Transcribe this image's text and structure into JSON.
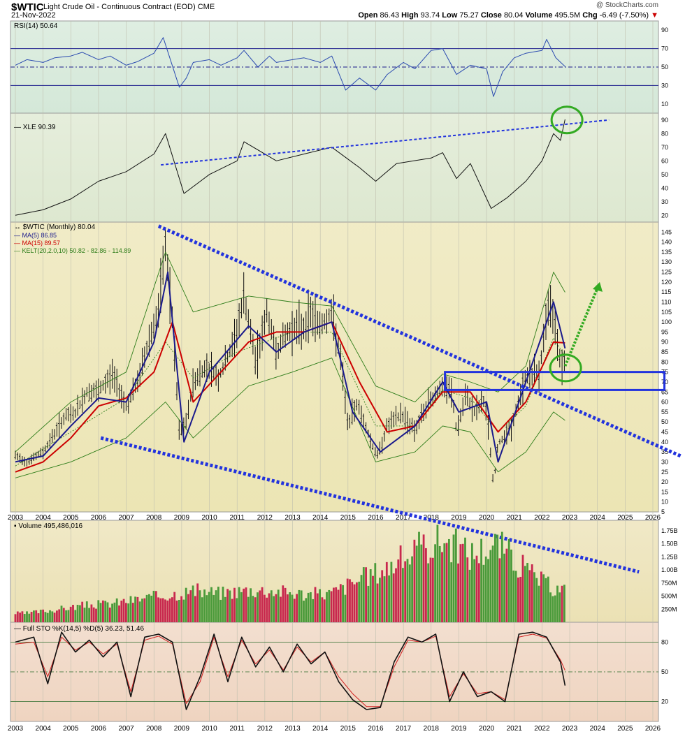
{
  "header": {
    "ticker": "$WTIC",
    "name": "Light Crude Oil - Continuous Contract (EOD)",
    "exchange": "CME",
    "date": "21-Nov-2022",
    "watermark": "@ StockCharts.com",
    "open_label": "Open",
    "open": "86.43",
    "high_label": "High",
    "high": "93.74",
    "low_label": "Low",
    "low": "75.27",
    "close_label": "Close",
    "close": "80.04",
    "volume_label": "Volume",
    "volume": "495.5M",
    "chg_label": "Chg",
    "chg": "-6.49 (-7.50%)",
    "chg_arrow": "▼"
  },
  "colors": {
    "rsi_bg": "#d4e8d8",
    "xle_bg": "#dde8d0",
    "price_bg": "#ece5b4",
    "volume_bg": "#ebe1b4",
    "sto_bg": "#efd4c0",
    "ma5": "#1a1a8c",
    "ma15": "#cc0000",
    "kelt": "#2e7d1a",
    "trend_blue": "#2233dd",
    "circle_green": "#33aa22",
    "vol_up": "#4a9a3a",
    "vol_down": "#c8284e"
  },
  "chart_data": [
    {
      "type": "line",
      "panel": "rsi",
      "legend": "RSI(14) 50.64",
      "ylim": [
        0,
        100
      ],
      "y_ticks": [
        "90",
        "70",
        "50",
        "30",
        "10"
      ],
      "reference_lines": [
        70,
        50,
        30
      ],
      "x": [
        "2003-01",
        "2003-06",
        "2004-01",
        "2004-06",
        "2005-01",
        "2005-06",
        "2006-01",
        "2006-06",
        "2007-01",
        "2007-06",
        "2008-01",
        "2008-05",
        "2008-12",
        "2009-03",
        "2009-06",
        "2010-01",
        "2010-06",
        "2011-01",
        "2011-04",
        "2011-10",
        "2012-03",
        "2012-06",
        "2013-01",
        "2013-06",
        "2014-01",
        "2014-06",
        "2014-12",
        "2015-06",
        "2016-01",
        "2016-06",
        "2017-01",
        "2017-06",
        "2018-01",
        "2018-06",
        "2018-12",
        "2019-06",
        "2020-01",
        "2020-04",
        "2020-08",
        "2021-01",
        "2021-06",
        "2022-01",
        "2022-03",
        "2022-07",
        "2022-11"
      ],
      "values": [
        52,
        58,
        55,
        60,
        62,
        66,
        58,
        62,
        52,
        56,
        65,
        82,
        28,
        38,
        55,
        58,
        52,
        60,
        68,
        50,
        62,
        55,
        58,
        60,
        55,
        62,
        25,
        38,
        25,
        42,
        55,
        48,
        68,
        70,
        42,
        52,
        48,
        18,
        45,
        60,
        65,
        68,
        80,
        60,
        50.64
      ]
    },
    {
      "type": "line",
      "panel": "xle",
      "legend": "XLE 90.39",
      "ylim": [
        15,
        95
      ],
      "y_ticks": [
        "90",
        "80",
        "70",
        "60",
        "50",
        "40",
        "30",
        "20"
      ],
      "x": [
        "2003-01",
        "2004-01",
        "2005-01",
        "2006-01",
        "2007-01",
        "2008-01",
        "2008-06",
        "2009-02",
        "2010-01",
        "2011-01",
        "2011-04",
        "2012-06",
        "2013-06",
        "2014-06",
        "2015-06",
        "2016-01",
        "2016-10",
        "2018-01",
        "2018-06",
        "2018-12",
        "2019-06",
        "2020-03",
        "2020-10",
        "2021-06",
        "2022-01",
        "2022-06",
        "2022-09",
        "2022-11"
      ],
      "values": [
        20,
        24,
        32,
        45,
        52,
        65,
        80,
        36,
        50,
        60,
        74,
        60,
        65,
        70,
        55,
        45,
        58,
        62,
        66,
        47,
        58,
        25,
        33,
        45,
        60,
        80,
        75,
        90.39
      ]
    },
    {
      "type": "candlestick",
      "panel": "price",
      "legend": [
        "$WTIC (Monthly) 80.04",
        "MA(5) 86.85",
        "MA(15) 89.57",
        "KELT(20,2.0,10) 50.82 - 82.86 - 114.89"
      ],
      "ylim": [
        5,
        150
      ],
      "y_ticks": [
        "145",
        "140",
        "135",
        "130",
        "125",
        "120",
        "115",
        "110",
        "105",
        "100",
        "95",
        "90",
        "85",
        "80",
        "75",
        "70",
        "65",
        "60",
        "55",
        "50",
        "45",
        "40",
        "35",
        "30",
        "25",
        "20",
        "15",
        "10",
        "5"
      ],
      "x_ticks": [
        "2003",
        "2004",
        "2005",
        "2006",
        "2007",
        "2008",
        "2009",
        "2010",
        "2011",
        "2012",
        "2013",
        "2014",
        "2015",
        "2016",
        "2017",
        "2018",
        "2019",
        "2020",
        "2021",
        "2022",
        "2023",
        "2024",
        "2025",
        "2026"
      ],
      "close_path": {
        "x": [
          "2003-01",
          "2003-06",
          "2004-01",
          "2004-10",
          "2005-03",
          "2005-08",
          "2006-01",
          "2006-07",
          "2007-01",
          "2007-06",
          "2007-11",
          "2008-03",
          "2008-06",
          "2008-09",
          "2008-12",
          "2009-03",
          "2009-06",
          "2009-12",
          "2010-05",
          "2010-12",
          "2011-04",
          "2011-09",
          "2012-02",
          "2012-06",
          "2012-09",
          "2013-01",
          "2013-06",
          "2013-09",
          "2014-01",
          "2014-06",
          "2014-10",
          "2015-01",
          "2015-05",
          "2015-12",
          "2016-02",
          "2016-06",
          "2016-12",
          "2017-06",
          "2017-12",
          "2018-05",
          "2018-10",
          "2018-12",
          "2019-04",
          "2019-08",
          "2019-12",
          "2020-02",
          "2020-04",
          "2020-06",
          "2020-12",
          "2021-06",
          "2021-12",
          "2022-03",
          "2022-06",
          "2022-09",
          "2022-11"
        ],
        "values": [
          33,
          30,
          35,
          52,
          55,
          65,
          65,
          74,
          58,
          70,
          92,
          105,
          139,
          100,
          44,
          50,
          70,
          78,
          72,
          91,
          113,
          80,
          105,
          85,
          92,
          97,
          97,
          105,
          98,
          105,
          80,
          48,
          60,
          37,
          33,
          48,
          54,
          46,
          60,
          67,
          65,
          45,
          63,
          55,
          61,
          45,
          18,
          39,
          48,
          73,
          75,
          105,
          105,
          80,
          80.04
        ]
      },
      "ma5": {
        "x": [
          "2003-01",
          "2004-01",
          "2005-01",
          "2006-01",
          "2007-01",
          "2008-01",
          "2008-07",
          "2009-02",
          "2010-01",
          "2011-06",
          "2012-06",
          "2013-06",
          "2014-06",
          "2015-03",
          "2016-03",
          "2017-06",
          "2018-06",
          "2019-01",
          "2020-01",
          "2020-06",
          "2021-06",
          "2022-06",
          "2022-11"
        ],
        "values": [
          30,
          33,
          48,
          62,
          60,
          90,
          125,
          40,
          75,
          98,
          85,
          95,
          100,
          55,
          35,
          48,
          70,
          55,
          60,
          30,
          70,
          110,
          86.85
        ]
      },
      "ma15": {
        "x": [
          "2003-01",
          "2004-01",
          "2005-01",
          "2006-01",
          "2007-01",
          "2008-01",
          "2008-09",
          "2009-06",
          "2010-06",
          "2011-06",
          "2012-06",
          "2013-06",
          "2014-06",
          "2015-06",
          "2016-06",
          "2017-06",
          "2018-06",
          "2019-06",
          "2020-06",
          "2021-06",
          "2022-06",
          "2022-11"
        ],
        "values": [
          25,
          30,
          42,
          58,
          62,
          75,
          100,
          60,
          75,
          90,
          95,
          95,
          100,
          70,
          45,
          48,
          65,
          65,
          45,
          60,
          90,
          89.57
        ]
      },
      "keltner_mid": {
        "x": [
          "2003-01",
          "2005-01",
          "2007-01",
          "2008-06",
          "2009-06",
          "2011-01",
          "2013-01",
          "2014-06",
          "2016-01",
          "2017-06",
          "2018-06",
          "2019-06",
          "2020-06",
          "2021-06",
          "2022-06",
          "2022-11"
        ],
        "values": [
          28,
          45,
          62,
          90,
          72,
          85,
          95,
          95,
          48,
          48,
          66,
          62,
          45,
          58,
          92,
          82.86
        ]
      },
      "keltner_upper": {
        "x": [
          "2003-01",
          "2005-01",
          "2007-01",
          "2008-06",
          "2009-06",
          "2011-06",
          "2013-01",
          "2014-06",
          "2016-01",
          "2017-06",
          "2018-06",
          "2019-06",
          "2020-06",
          "2021-06",
          "2022-06",
          "2022-11"
        ],
        "values": [
          35,
          60,
          75,
          135,
          105,
          113,
          110,
          108,
          68,
          60,
          74,
          70,
          65,
          78,
          125,
          114.89
        ]
      },
      "keltner_lower": {
        "x": [
          "2003-01",
          "2005-01",
          "2007-01",
          "2008-06",
          "2009-06",
          "2011-06",
          "2013-01",
          "2014-06",
          "2016-01",
          "2017-06",
          "2018-06",
          "2019-06",
          "2020-06",
          "2021-06",
          "2022-06",
          "2022-11"
        ],
        "values": [
          22,
          30,
          42,
          60,
          42,
          68,
          75,
          82,
          30,
          35,
          48,
          45,
          25,
          35,
          55,
          50.82
        ]
      },
      "annotations": {
        "channel_box": {
          "y_low": 66,
          "y_high": 75,
          "x_start": "2018-07",
          "x_end": "2026-06"
        },
        "upper_downtrend": {
          "from": [
            "2008-03",
            148
          ],
          "to": [
            "2027-01",
            33
          ]
        },
        "lower_downtrend": {
          "from": [
            "2006-02",
            42
          ],
          "to": [
            "2025-07",
            -25
          ]
        },
        "green_arrow": {
          "from": [
            "2022-11",
            78
          ],
          "to": [
            "2024-02",
            120
          ]
        },
        "green_circle_price": [
          "2022-10",
          77
        ],
        "green_circle_xle": [
          "2022-10",
          90
        ]
      }
    },
    {
      "type": "bar",
      "panel": "volume",
      "legend": "Volume 495,486,016",
      "y_ticks": [
        "1.75B",
        "1.50B",
        "1.25B",
        "1.00B",
        "750M",
        "500M",
        "250M"
      ],
      "ylim": [
        0,
        1950000000
      ],
      "x": [
        "2003",
        "2004",
        "2005",
        "2006",
        "2007",
        "2008",
        "2009",
        "2010",
        "2011",
        "2012",
        "2013",
        "2014",
        "2015",
        "2016",
        "2017",
        "2018",
        "2019",
        "2020",
        "2021",
        "2022"
      ],
      "values": [
        170000000,
        240000000,
        320000000,
        360000000,
        440000000,
        520000000,
        600000000,
        560000000,
        620000000,
        600000000,
        540000000,
        560000000,
        820000000,
        1050000000,
        1350000000,
        1600000000,
        1300000000,
        1500000000,
        1000000000,
        640000000
      ]
    },
    {
      "type": "line",
      "panel": "stochastic",
      "legend": "Full STO %K(14,5) %D(5) 36.23, 51.46",
      "ylim": [
        0,
        100
      ],
      "y_ticks": [
        "80",
        "50",
        "20"
      ],
      "reference_lines": [
        80,
        50,
        20
      ],
      "x": [
        "2003-01",
        "2003-09",
        "2004-03",
        "2004-09",
        "2005-03",
        "2005-09",
        "2006-03",
        "2006-09",
        "2007-03",
        "2007-09",
        "2008-03",
        "2008-09",
        "2009-03",
        "2009-09",
        "2010-03",
        "2010-09",
        "2011-03",
        "2011-09",
        "2012-03",
        "2012-09",
        "2013-03",
        "2013-09",
        "2014-03",
        "2014-09",
        "2015-03",
        "2015-09",
        "2016-03",
        "2016-09",
        "2017-03",
        "2017-09",
        "2018-03",
        "2018-09",
        "2019-03",
        "2019-09",
        "2020-03",
        "2020-09",
        "2021-03",
        "2021-09",
        "2022-03",
        "2022-09",
        "2022-11"
      ],
      "k_values": [
        80,
        85,
        38,
        90,
        70,
        82,
        65,
        80,
        25,
        85,
        88,
        80,
        12,
        45,
        88,
        40,
        85,
        55,
        75,
        50,
        78,
        58,
        70,
        40,
        22,
        12,
        14,
        60,
        85,
        80,
        88,
        20,
        50,
        25,
        30,
        20,
        88,
        90,
        85,
        60,
        36.23
      ],
      "d_values": [
        78,
        80,
        45,
        85,
        72,
        80,
        68,
        78,
        30,
        82,
        86,
        78,
        18,
        40,
        85,
        45,
        82,
        58,
        72,
        52,
        75,
        60,
        70,
        45,
        28,
        15,
        15,
        55,
        82,
        80,
        86,
        25,
        48,
        28,
        30,
        22,
        85,
        88,
        84,
        62,
        51.46
      ]
    }
  ]
}
